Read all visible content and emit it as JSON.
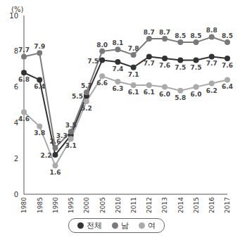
{
  "chart_data": {
    "type": "line",
    "y_label": "(%)",
    "categories": [
      "1980",
      "1985",
      "1990",
      "1995",
      "2000",
      "2005",
      "2010",
      "2011",
      "2012",
      "2013",
      "2014",
      "2015",
      "2016",
      "2017"
    ],
    "series": [
      {
        "name": "전체",
        "color": "#333333",
        "marker": "circle",
        "values": [
          6.8,
          6.4,
          2.2,
          3.3,
          5.5,
          7.5,
          7.4,
          7.1,
          7.7,
          7.6,
          7.5,
          7.5,
          7.7,
          7.6
        ],
        "value_labels": [
          "6.8",
          "6.4",
          "2.2",
          "3.3",
          "5.5",
          "7.5",
          "7.4",
          "7.1",
          "7.7",
          "7.6",
          "7.5",
          "7.5",
          "7.7",
          "7.6"
        ]
      },
      {
        "name": "남",
        "color": "#7a7a7a",
        "marker": "circle",
        "values": [
          7.7,
          7.9,
          2.6,
          3.5,
          5.7,
          8.0,
          8.1,
          7.8,
          8.7,
          8.7,
          8.5,
          8.5,
          8.8,
          8.5
        ],
        "value_labels": [
          "7.7",
          "7.9",
          "2.6",
          "3.5",
          "5.7",
          "8.0",
          "8.1",
          "7.8",
          "8.7",
          "8.7",
          "8.5",
          "8.5",
          "8.8",
          "8.5"
        ]
      },
      {
        "name": "여",
        "color": "#aaaaaa",
        "marker": "circle",
        "values": [
          4.6,
          3.8,
          1.6,
          3.1,
          5.2,
          6.6,
          6.3,
          6.1,
          6.1,
          6.0,
          5.8,
          6.0,
          6.2,
          6.4
        ],
        "value_labels": [
          "4.6",
          "3.8",
          "1.6",
          "3.1",
          "5.2",
          "6.6",
          "6.3",
          "6.1",
          "6.1",
          "6.0",
          "5.8",
          "6.0",
          "6.2",
          "6.4"
        ]
      }
    ],
    "ylim": [
      0,
      10
    ],
    "yticks": [
      0,
      2,
      4,
      6,
      8,
      10
    ],
    "grid": false,
    "data_labels": true,
    "legend": "bottom"
  }
}
